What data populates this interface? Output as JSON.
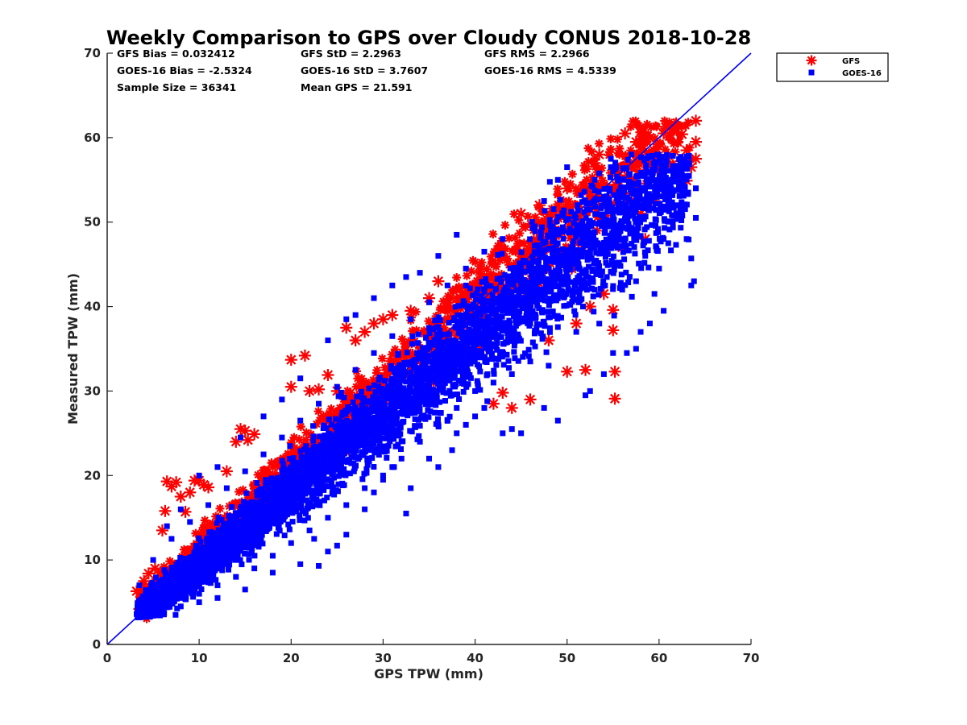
{
  "chart_data": {
    "type": "scatter",
    "title": "Weekly Comparison to GPS over Cloudy CONUS 2018-10-28",
    "xlabel": "GPS TPW (mm)",
    "ylabel": "Measured TPW (mm)",
    "xlim": [
      0,
      70
    ],
    "ylim": [
      0,
      70
    ],
    "xticks": [
      "0",
      "10",
      "20",
      "30",
      "40",
      "50",
      "60",
      "70"
    ],
    "yticks": [
      "0",
      "10",
      "20",
      "30",
      "40",
      "50",
      "60",
      "70"
    ],
    "grid": false,
    "legend_position": "outside top-right",
    "reference_line": {
      "from": [
        0,
        0
      ],
      "to": [
        70,
        70
      ],
      "color": "#0000ff"
    },
    "stats": [
      [
        "GFS Bias = 0.032412",
        "GFS StD = 2.2963",
        "GFS RMS = 2.2966"
      ],
      [
        "GOES-16 Bias = -2.5324",
        "GOES-16 StD = 3.7607",
        "GOES-16 RMS = 4.5339"
      ],
      [
        "Sample Size = 36341",
        "Mean GPS = 21.591",
        ""
      ]
    ],
    "series": [
      {
        "name": "GFS",
        "marker": "asterisk",
        "color": "#ff0000",
        "points": [
          [
            3.2,
            6.3
          ],
          [
            3.5,
            4.2
          ],
          [
            4.0,
            7.5
          ],
          [
            4.5,
            8.4
          ],
          [
            5.2,
            9.0
          ],
          [
            6.0,
            13.5
          ],
          [
            6.3,
            15.8
          ],
          [
            6.5,
            19.3
          ],
          [
            7.0,
            18.7
          ],
          [
            7.5,
            19.2
          ],
          [
            8.0,
            17.5
          ],
          [
            8.5,
            15.7
          ],
          [
            9.0,
            18.0
          ],
          [
            9.5,
            19.4
          ],
          [
            10.0,
            19.4
          ],
          [
            10.5,
            18.9
          ],
          [
            11.0,
            18.6
          ],
          [
            13.0,
            20.5
          ],
          [
            14.0,
            24.0
          ],
          [
            14.5,
            25.5
          ],
          [
            15.0,
            25.3
          ],
          [
            15.3,
            24.2
          ],
          [
            16.0,
            24.9
          ],
          [
            20.0,
            33.7
          ],
          [
            20.0,
            30.5
          ],
          [
            21.5,
            34.2
          ],
          [
            22.0,
            30.0
          ],
          [
            23.0,
            30.2
          ],
          [
            24.0,
            31.9
          ],
          [
            25.0,
            30.0
          ],
          [
            26.0,
            37.5
          ],
          [
            27.0,
            36.0
          ],
          [
            28.0,
            37.0
          ],
          [
            29.0,
            38.0
          ],
          [
            30.0,
            38.5
          ],
          [
            31.0,
            39.0
          ],
          [
            33.0,
            39.5
          ],
          [
            35.0,
            41.0
          ],
          [
            36.0,
            43.0
          ],
          [
            36.5,
            33.5
          ],
          [
            37.0,
            40.0
          ],
          [
            38.0,
            41.0
          ],
          [
            40.0,
            42.0
          ],
          [
            42.0,
            28.5
          ],
          [
            42.5,
            46.0
          ],
          [
            43.0,
            29.8
          ],
          [
            44.0,
            28.0
          ],
          [
            45.0,
            51.0
          ],
          [
            46.0,
            29.0
          ],
          [
            47.0,
            52.0
          ],
          [
            48.0,
            36.0
          ],
          [
            50.0,
            32.3
          ],
          [
            50.0,
            54.0
          ],
          [
            51.0,
            38.0
          ],
          [
            52.0,
            32.5
          ],
          [
            52.5,
            40.0
          ],
          [
            53.0,
            57.0
          ],
          [
            53.5,
            58.0
          ],
          [
            54.0,
            41.5
          ],
          [
            55.0,
            39.6
          ],
          [
            55.0,
            37.2
          ],
          [
            55.2,
            32.3
          ],
          [
            55.2,
            29.1
          ],
          [
            56.0,
            47.0
          ],
          [
            56.3,
            60.5
          ],
          [
            57.0,
            56.5
          ],
          [
            57.5,
            59.5
          ],
          [
            58.0,
            51.0
          ],
          [
            58.5,
            48.0
          ],
          [
            59.0,
            60.0
          ],
          [
            59.5,
            52.5
          ],
          [
            60.0,
            57.0
          ],
          [
            60.5,
            60.5
          ],
          [
            61.0,
            58.0
          ],
          [
            62.0,
            59.5
          ],
          [
            62.5,
            60.4
          ],
          [
            63.0,
            58.5
          ],
          [
            63.0,
            54.9
          ],
          [
            63.5,
            56.5
          ],
          [
            64.0,
            57.5
          ],
          [
            64.0,
            62.0
          ],
          [
            64.0,
            59.5
          ],
          [
            55.5,
            55.0
          ],
          [
            50.5,
            44.5
          ],
          [
            45.5,
            40.5
          ],
          [
            40.5,
            35.0
          ],
          [
            35.5,
            31.0
          ],
          [
            30.5,
            32.0
          ],
          [
            25.5,
            27.0
          ],
          [
            18.0,
            21.0
          ]
        ]
      },
      {
        "name": "GOES-16",
        "marker": "square",
        "color": "#0000ff",
        "points": [
          [
            3.2,
            3.6
          ],
          [
            3.5,
            7.0
          ],
          [
            4.5,
            3.6
          ],
          [
            5.0,
            3.4
          ],
          [
            6.0,
            3.6
          ],
          [
            8.0,
            4.5
          ],
          [
            10.0,
            5.0
          ],
          [
            12.0,
            5.5
          ],
          [
            15.0,
            6.5
          ],
          [
            18.0,
            8.5
          ],
          [
            21.0,
            9.5
          ],
          [
            22.5,
            12.5
          ],
          [
            23.0,
            9.3
          ],
          [
            24.0,
            11.0
          ],
          [
            25.0,
            11.7
          ],
          [
            26.0,
            13.0
          ],
          [
            28.0,
            16.0
          ],
          [
            29.0,
            18.0
          ],
          [
            30.0,
            19.5
          ],
          [
            31.0,
            21.0
          ],
          [
            32.5,
            15.5
          ],
          [
            33.0,
            18.5
          ],
          [
            35.0,
            22.0
          ],
          [
            36.0,
            21.0
          ],
          [
            37.5,
            23.0
          ],
          [
            38.0,
            25.0
          ],
          [
            39.0,
            26.0
          ],
          [
            40.0,
            27.0
          ],
          [
            41.0,
            28.0
          ],
          [
            43.0,
            25.0
          ],
          [
            44.0,
            25.5
          ],
          [
            45.0,
            25.0
          ],
          [
            47.5,
            28.0
          ],
          [
            49.0,
            26.5
          ],
          [
            52.0,
            29.5
          ],
          [
            52.5,
            30.0
          ],
          [
            54.0,
            32.0
          ],
          [
            55.0,
            34.5
          ],
          [
            56.5,
            34.5
          ],
          [
            57.5,
            35.0
          ],
          [
            58.0,
            37.0
          ],
          [
            59.0,
            38.0
          ],
          [
            59.5,
            41.5
          ],
          [
            60.0,
            44.5
          ],
          [
            60.5,
            39.5
          ],
          [
            61.0,
            47.5
          ],
          [
            62.0,
            51.0
          ],
          [
            63.0,
            48.0
          ],
          [
            63.5,
            42.5
          ],
          [
            63.8,
            43.0
          ],
          [
            63.5,
            45.7
          ],
          [
            64.0,
            50.5
          ],
          [
            64.0,
            54.0
          ],
          [
            62.5,
            51.5
          ],
          [
            61.5,
            50.0
          ],
          [
            60.5,
            48.0
          ],
          [
            58.5,
            46.0
          ],
          [
            57.5,
            43.0
          ],
          [
            56.0,
            42.0
          ],
          [
            55.0,
            45.0
          ],
          [
            53.0,
            42.0
          ],
          [
            51.0,
            37.0
          ],
          [
            48.0,
            33.0
          ],
          [
            46.0,
            33.5
          ],
          [
            44.0,
            32.0
          ],
          [
            42.0,
            31.0
          ],
          [
            40.0,
            30.0
          ],
          [
            38.0,
            28.0
          ],
          [
            36.0,
            26.0
          ],
          [
            34.0,
            24.0
          ],
          [
            32.0,
            22.0
          ],
          [
            30.0,
            20.0
          ],
          [
            28.0,
            18.5
          ],
          [
            26.0,
            16.5
          ],
          [
            24.0,
            15.0
          ],
          [
            22.0,
            13.5
          ],
          [
            20.0,
            12.0
          ],
          [
            18.0,
            10.5
          ],
          [
            16.0,
            9.0
          ],
          [
            14.0,
            8.0
          ],
          [
            12.0,
            7.0
          ],
          [
            10.0,
            6.0
          ],
          [
            8.0,
            5.5
          ],
          [
            6.0,
            5.0
          ],
          [
            5.0,
            5.5
          ],
          [
            38.0,
            48.5
          ],
          [
            36.0,
            46.0
          ],
          [
            34.0,
            44.0
          ],
          [
            32.5,
            43.5
          ],
          [
            31.0,
            42.5
          ],
          [
            29.0,
            41.0
          ],
          [
            27.0,
            39.0
          ],
          [
            26.0,
            38.5
          ],
          [
            24.0,
            36.0
          ],
          [
            21.0,
            31.5
          ],
          [
            19.0,
            29.0
          ],
          [
            17.0,
            27.0
          ],
          [
            14.5,
            24.5
          ],
          [
            12.0,
            21.0
          ],
          [
            10.0,
            20.0
          ],
          [
            8.0,
            16.0
          ],
          [
            6.5,
            14.0
          ],
          [
            47.5,
            52.5
          ],
          [
            46.5,
            49.5
          ],
          [
            49.0,
            55.0
          ],
          [
            50.0,
            56.5
          ],
          [
            53.0,
            55.0
          ],
          [
            55.0,
            56.0
          ],
          [
            57.0,
            58.0
          ],
          [
            54.0,
            53.0
          ],
          [
            43.0,
            48.0
          ],
          [
            41.0,
            46.5
          ],
          [
            39.0,
            44.5
          ],
          [
            37.0,
            42.5
          ],
          [
            35.0,
            40.5
          ],
          [
            33.0,
            38.5
          ],
          [
            31.0,
            36.5
          ],
          [
            29.0,
            34.5
          ],
          [
            27.0,
            32.5
          ],
          [
            25.0,
            30.5
          ],
          [
            23.0,
            28.5
          ],
          [
            21.0,
            26.5
          ],
          [
            19.0,
            24.5
          ],
          [
            17.0,
            22.5
          ],
          [
            15.0,
            20.5
          ],
          [
            13.0,
            18.5
          ],
          [
            11.0,
            16.5
          ],
          [
            9.0,
            14.5
          ],
          [
            7.0,
            12.5
          ],
          [
            5.0,
            10.0
          ],
          [
            45.0,
            42.0
          ],
          [
            43.0,
            40.0
          ],
          [
            41.0,
            38.0
          ],
          [
            39.0,
            36.0
          ],
          [
            37.0,
            34.0
          ],
          [
            35.0,
            32.0
          ],
          [
            33.0,
            30.0
          ],
          [
            31.0,
            28.0
          ],
          [
            29.0,
            26.0
          ],
          [
            27.0,
            24.0
          ],
          [
            25.0,
            22.0
          ],
          [
            23.0,
            20.0
          ],
          [
            21.0,
            18.0
          ],
          [
            19.0,
            16.0
          ],
          [
            17.0,
            14.0
          ],
          [
            15.0,
            12.0
          ],
          [
            13.0,
            10.5
          ],
          [
            11.0,
            9.0
          ],
          [
            9.0,
            8.0
          ],
          [
            7.0,
            6.5
          ],
          [
            50.0,
            45.0
          ],
          [
            52.0,
            48.0
          ],
          [
            54.0,
            50.0
          ],
          [
            56.0,
            52.0
          ],
          [
            58.0,
            54.0
          ],
          [
            60.0,
            55.0
          ],
          [
            62.0,
            56.0
          ],
          [
            48.0,
            43.0
          ],
          [
            46.0,
            38.0
          ],
          [
            44.0,
            36.0
          ]
        ]
      }
    ]
  }
}
